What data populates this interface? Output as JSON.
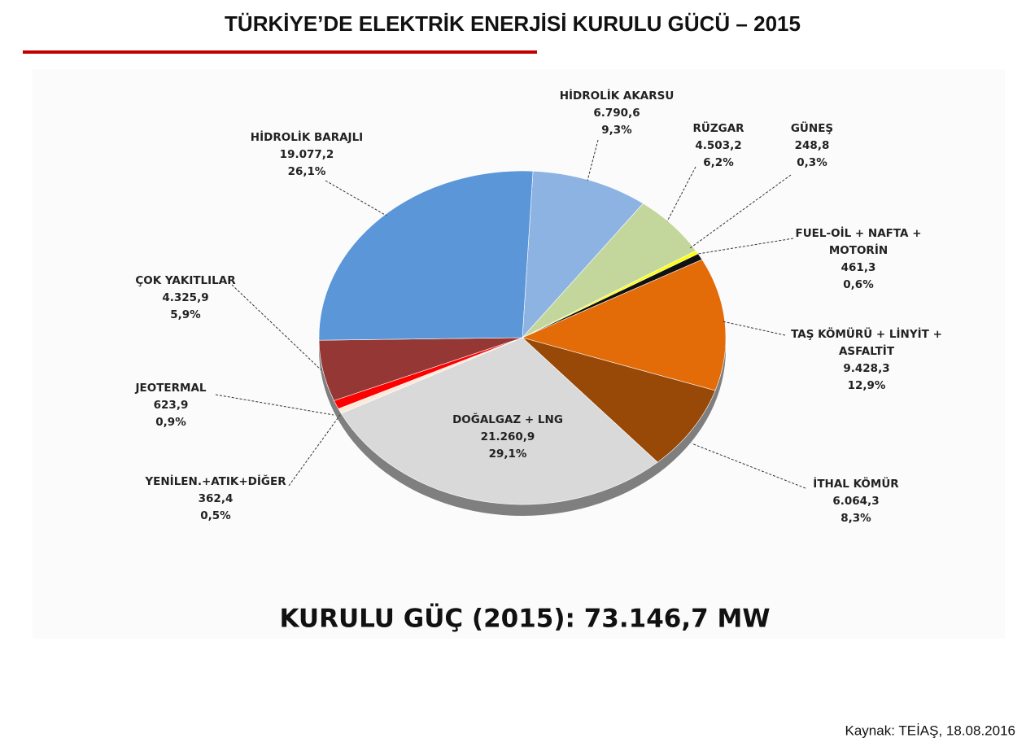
{
  "chart_data": {
    "type": "pie",
    "title": "TÜRKİYE’DE ELEKTRİK ENERJİSİ KURULU GÜCÜ – 2015",
    "categories": [
      "HİDROLİK AKARSU",
      "RÜZGAR",
      "GÜNEŞ",
      "FUEL-OİL + NAFTA +\nMOTORİN",
      "TAŞ KÖMÜRÜ + LİNYİT +\nASFALTİT",
      "İTHAL KÖMÜR",
      "DOĞALGAZ + LNG",
      "YENİLEN.+ATIK+DİĞER",
      "JEOTERMAL",
      "ÇOK YAKITLILAR",
      "HİDROLİK BARAJLI"
    ],
    "values": [
      6790.6,
      4503.2,
      248.8,
      461.3,
      9428.3,
      6064.3,
      21260.9,
      362.4,
      623.9,
      4325.9,
      19077.2
    ],
    "value_labels": [
      "6.790,6",
      "4.503,2",
      "248,8",
      "461,3",
      "9.428,3",
      "6.064,3",
      "21.260,9",
      "362,4",
      "623,9",
      "4.325,9",
      "19.077,2"
    ],
    "shares": [
      9.3,
      6.2,
      0.3,
      0.6,
      12.9,
      8.3,
      29.1,
      0.5,
      0.9,
      5.9,
      26.1
    ],
    "share_labels": [
      "9,3%",
      "6,2%",
      "0,3%",
      "0,6%",
      "12,9%",
      "8,3%",
      "29,1%",
      "0,5%",
      "0,9%",
      "5,9%",
      "26,1%"
    ],
    "colors": [
      "#8db3e2",
      "#c3d69b",
      "#ffff00",
      "#111111",
      "#e36c09",
      "#984807",
      "#d9d9d9",
      "#fde9d9",
      "#ff0000",
      "#953735",
      "#5b96d8"
    ],
    "total_label": "KURULU GÜÇ (2015): 73.146,7 MW",
    "source": "Kaynak: TEİAŞ, 18.08.2016"
  }
}
